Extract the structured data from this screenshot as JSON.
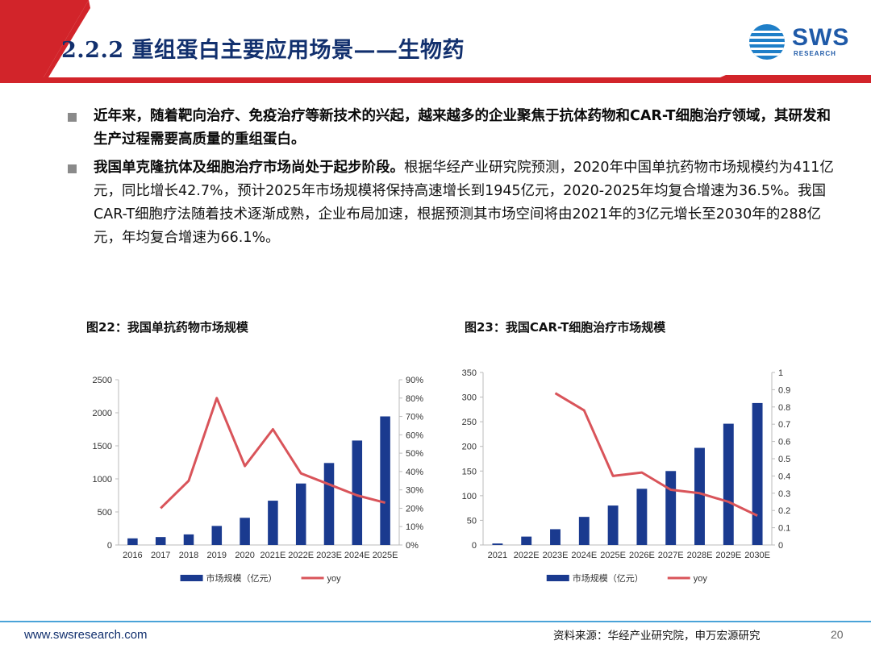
{
  "header": {
    "title": "2.2.2 重组蛋白主要应用场景——生物药",
    "logo_text": "SWS",
    "logo_sub": "RESEARCH",
    "colors": {
      "accent_red": "#d2242a",
      "navy": "#12306e",
      "brand_blue": "#1f5aa8"
    }
  },
  "bullets": [
    {
      "bold": "近年来，随着靶向治疗、免疫治疗等新技术的兴起，越来越多的企业聚焦于抗体药物和CAR-T细胞治疗领域，其研发和生产过程需要高质量的重组蛋白。",
      "text": ""
    },
    {
      "bold": "我国单克隆抗体及细胞治疗市场尚处于起步阶段。",
      "text": "根据华经产业研究院预测，2020年中国单抗药物市场规模约为411亿元，同比增长42.7%，预计2025年市场规模将保持高速增长到1945亿元，2020-2025年均复合增速为36.5%。我国CAR-T细胞疗法随着技术逐渐成熟，企业布局加速，根据预测其市场空间将由2021年的3亿元增长至2030年的288亿元，年均复合增速为66.1%。"
    }
  ],
  "figures": [
    {
      "title": "图22：我国单抗药物市场规模"
    },
    {
      "title": "图23：我国CAR-T细胞治疗市场规模"
    }
  ],
  "chart_data": [
    {
      "type": "bar",
      "categories": [
        "2016",
        "2017",
        "2018",
        "2019",
        "2020",
        "2021E",
        "2022E",
        "2023E",
        "2024E",
        "2025E"
      ],
      "series": [
        {
          "name": "市场规模（亿元）",
          "type": "bar",
          "axis": "left",
          "values": [
            100,
            120,
            160,
            288,
            411,
            670,
            930,
            1240,
            1580,
            1945
          ],
          "color": "#1a3a8f"
        },
        {
          "name": "yoy",
          "type": "line",
          "axis": "right",
          "values": [
            null,
            0.2,
            0.35,
            0.8,
            0.43,
            0.63,
            0.39,
            0.33,
            0.27,
            0.23
          ],
          "color": "#d9545a"
        }
      ],
      "ylim": [
        0,
        2500
      ],
      "yticks": [
        0,
        500,
        1000,
        1500,
        2000,
        2500
      ],
      "y2lim": [
        0,
        0.9
      ],
      "y2ticks": [
        "0%",
        "10%",
        "20%",
        "30%",
        "40%",
        "50%",
        "60%",
        "70%",
        "80%",
        "90%"
      ],
      "legend": "bottom"
    },
    {
      "type": "bar",
      "categories": [
        "2021",
        "2022E",
        "2023E",
        "2024E",
        "2025E",
        "2026E",
        "2027E",
        "2028E",
        "2029E",
        "2030E"
      ],
      "series": [
        {
          "name": "市场规模（亿元）",
          "type": "bar",
          "axis": "left",
          "values": [
            3,
            17,
            32,
            57,
            80,
            114,
            150,
            197,
            246,
            288
          ],
          "color": "#1a3a8f"
        },
        {
          "name": "yoy",
          "type": "line",
          "axis": "right",
          "values": [
            null,
            null,
            0.88,
            0.78,
            0.4,
            0.42,
            0.32,
            0.3,
            0.25,
            0.17
          ],
          "color": "#d9545a"
        }
      ],
      "ylim": [
        0,
        350
      ],
      "yticks": [
        0,
        50,
        100,
        150,
        200,
        250,
        300,
        350
      ],
      "y2lim": [
        0,
        1
      ],
      "y2ticks": [
        "0",
        "0.1",
        "0.2",
        "0.3",
        "0.4",
        "0.5",
        "0.6",
        "0.7",
        "0.8",
        "0.9",
        "1"
      ],
      "legend": "bottom"
    }
  ],
  "footer": {
    "url": "www.swsresearch.com",
    "source": "资料来源：华经产业研究院，申万宏源研究",
    "page": "20"
  }
}
